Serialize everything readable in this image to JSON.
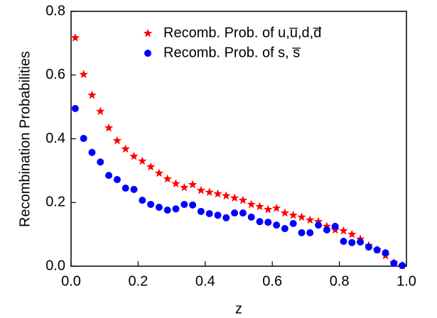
{
  "chart_data": {
    "type": "scatter",
    "xlabel": "z",
    "ylabel": "Recombination Probabilities",
    "xlim": [
      0,
      1
    ],
    "ylim": [
      0,
      0.8
    ],
    "xticks": [
      {
        "value": 0,
        "label": "0.0"
      },
      0.2,
      0.4,
      0.6,
      0.8,
      {
        "value": 1,
        "label": "1.0"
      }
    ],
    "yticks": [
      {
        "value": 0,
        "label": "0.0"
      },
      0.2,
      0.4,
      0.6,
      0.8
    ],
    "legend": "upper right",
    "series": [
      {
        "name": "Recomb. Prob. of u,u̅,d,d̅",
        "color": "#ff0000",
        "marker": "star",
        "x": [
          0.0125,
          0.0375,
          0.0625,
          0.0875,
          0.1125,
          0.1375,
          0.1625,
          0.1875,
          0.2125,
          0.2375,
          0.2625,
          0.2875,
          0.3125,
          0.3375,
          0.3625,
          0.3875,
          0.4125,
          0.4375,
          0.4625,
          0.4875,
          0.5125,
          0.5375,
          0.5625,
          0.5875,
          0.6125,
          0.6375,
          0.6625,
          0.6875,
          0.7125,
          0.7375,
          0.7625,
          0.7875,
          0.8125,
          0.8375,
          0.8625,
          0.8875,
          0.9125,
          0.9375,
          0.9625,
          0.9875
        ],
        "values": [
          0.717,
          0.602,
          0.537,
          0.486,
          0.434,
          0.394,
          0.368,
          0.345,
          0.33,
          0.312,
          0.292,
          0.274,
          0.259,
          0.247,
          0.256,
          0.238,
          0.232,
          0.227,
          0.221,
          0.214,
          0.207,
          0.194,
          0.187,
          0.178,
          0.182,
          0.167,
          0.16,
          0.154,
          0.145,
          0.14,
          0.125,
          0.114,
          0.111,
          0.1,
          0.085,
          0.065,
          0.051,
          0.033,
          0.011,
          0.002
        ]
      },
      {
        "name": "Recomb. Prob. of s, s̅",
        "color": "#0000ff",
        "marker": "circle",
        "x": [
          0.0125,
          0.0375,
          0.0625,
          0.0875,
          0.1125,
          0.1375,
          0.1625,
          0.1875,
          0.2125,
          0.2375,
          0.2625,
          0.2875,
          0.3125,
          0.3375,
          0.3625,
          0.3875,
          0.4125,
          0.4375,
          0.4625,
          0.4875,
          0.5125,
          0.5375,
          0.5625,
          0.5875,
          0.6125,
          0.6375,
          0.6625,
          0.6875,
          0.7125,
          0.7375,
          0.7625,
          0.7875,
          0.8125,
          0.8375,
          0.8625,
          0.8875,
          0.9125,
          0.9375,
          0.9625,
          0.9875
        ],
        "values": [
          0.495,
          0.401,
          0.357,
          0.327,
          0.285,
          0.272,
          0.245,
          0.241,
          0.207,
          0.194,
          0.185,
          0.176,
          0.18,
          0.194,
          0.192,
          0.172,
          0.165,
          0.16,
          0.152,
          0.167,
          0.167,
          0.154,
          0.14,
          0.138,
          0.129,
          0.118,
          0.134,
          0.105,
          0.105,
          0.129,
          0.114,
          0.125,
          0.078,
          0.074,
          0.076,
          0.06,
          0.051,
          0.042,
          0.009,
          0.002
        ]
      }
    ]
  }
}
